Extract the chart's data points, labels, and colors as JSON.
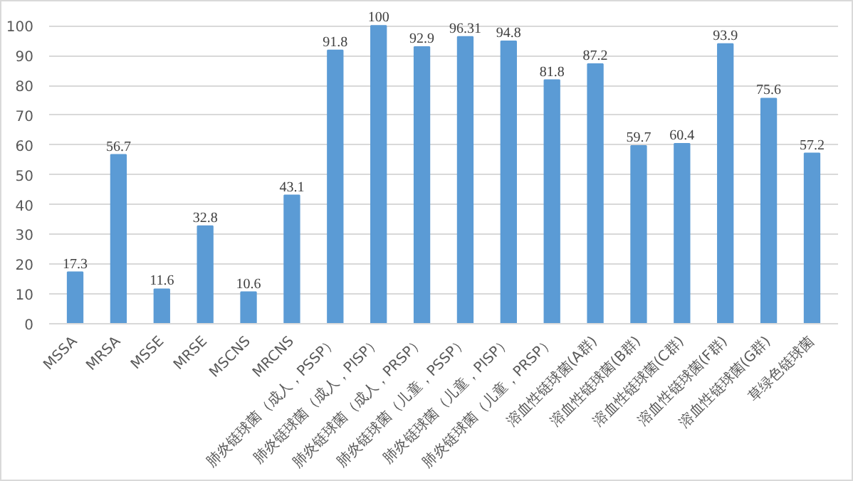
{
  "chart_data": {
    "type": "bar",
    "categories": [
      "MSSA",
      "MRSA",
      "MSSE",
      "MRSE",
      "MSCNS",
      "MRCNS",
      "肺炎链球菌（成人，PSSP）",
      "肺炎链球菌（成人，PISP）",
      "肺炎链球菌（成人，PRSP）",
      "肺炎链球菌（儿童，PSSP）",
      "肺炎链球菌（儿童，PISP）",
      "肺炎链球菌（儿童，PRSP）",
      "溶血性链球菌(A群)",
      "溶血性链球菌(B群)",
      "溶血性链球菌(C群)",
      "溶血性链球菌(F群)",
      "溶血性链球菌(G群)",
      "草绿色链球菌"
    ],
    "values": [
      17.3,
      56.7,
      11.6,
      32.8,
      10.6,
      43.1,
      91.8,
      100,
      92.9,
      96.31,
      94.8,
      81.8,
      87.2,
      59.7,
      60.4,
      93.9,
      75.6,
      57.2
    ],
    "color": "#5b9bd5",
    "ylim": [
      0,
      100
    ],
    "yticks": [
      0,
      10,
      20,
      30,
      40,
      50,
      60,
      70,
      80,
      90,
      100
    ],
    "grid": "y",
    "data_labels": true
  }
}
